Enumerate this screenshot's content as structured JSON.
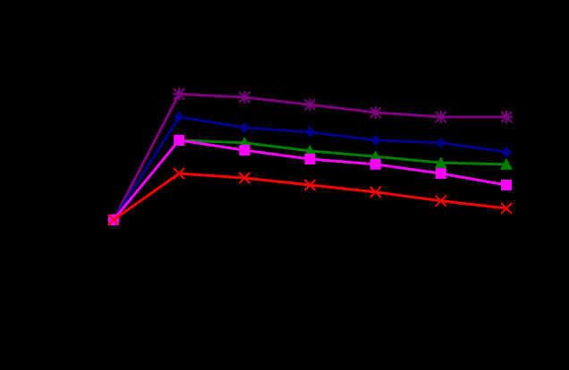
{
  "chart_data": {
    "type": "line",
    "categories": [
      null,
      null,
      null,
      null,
      null,
      null,
      null
    ],
    "ylim": [
      0,
      100
    ],
    "background": "#000000",
    "series": [
      {
        "color": "#800080",
        "marker": "star",
        "values": [
          40.6,
          74.6,
          73.7,
          71.7,
          69.6,
          68.4,
          68.4
        ]
      },
      {
        "color": "#00008b",
        "marker": "diamond",
        "values": [
          40.6,
          68.4,
          65.5,
          64.3,
          62.1,
          61.4,
          58.9
        ]
      },
      {
        "color": "#008000",
        "marker": "triangle",
        "values": [
          40.6,
          62.1,
          61.4,
          59.2,
          57.7,
          56.0,
          55.6
        ]
      },
      {
        "color": "#ff00ff",
        "marker": "square",
        "values": [
          40.6,
          62.1,
          59.4,
          57.0,
          55.6,
          53.1,
          50.0
        ]
      },
      {
        "color": "#ff0000",
        "marker": "x",
        "values": [
          40.6,
          53.1,
          51.9,
          50.0,
          48.1,
          45.7,
          43.7
        ]
      }
    ]
  }
}
